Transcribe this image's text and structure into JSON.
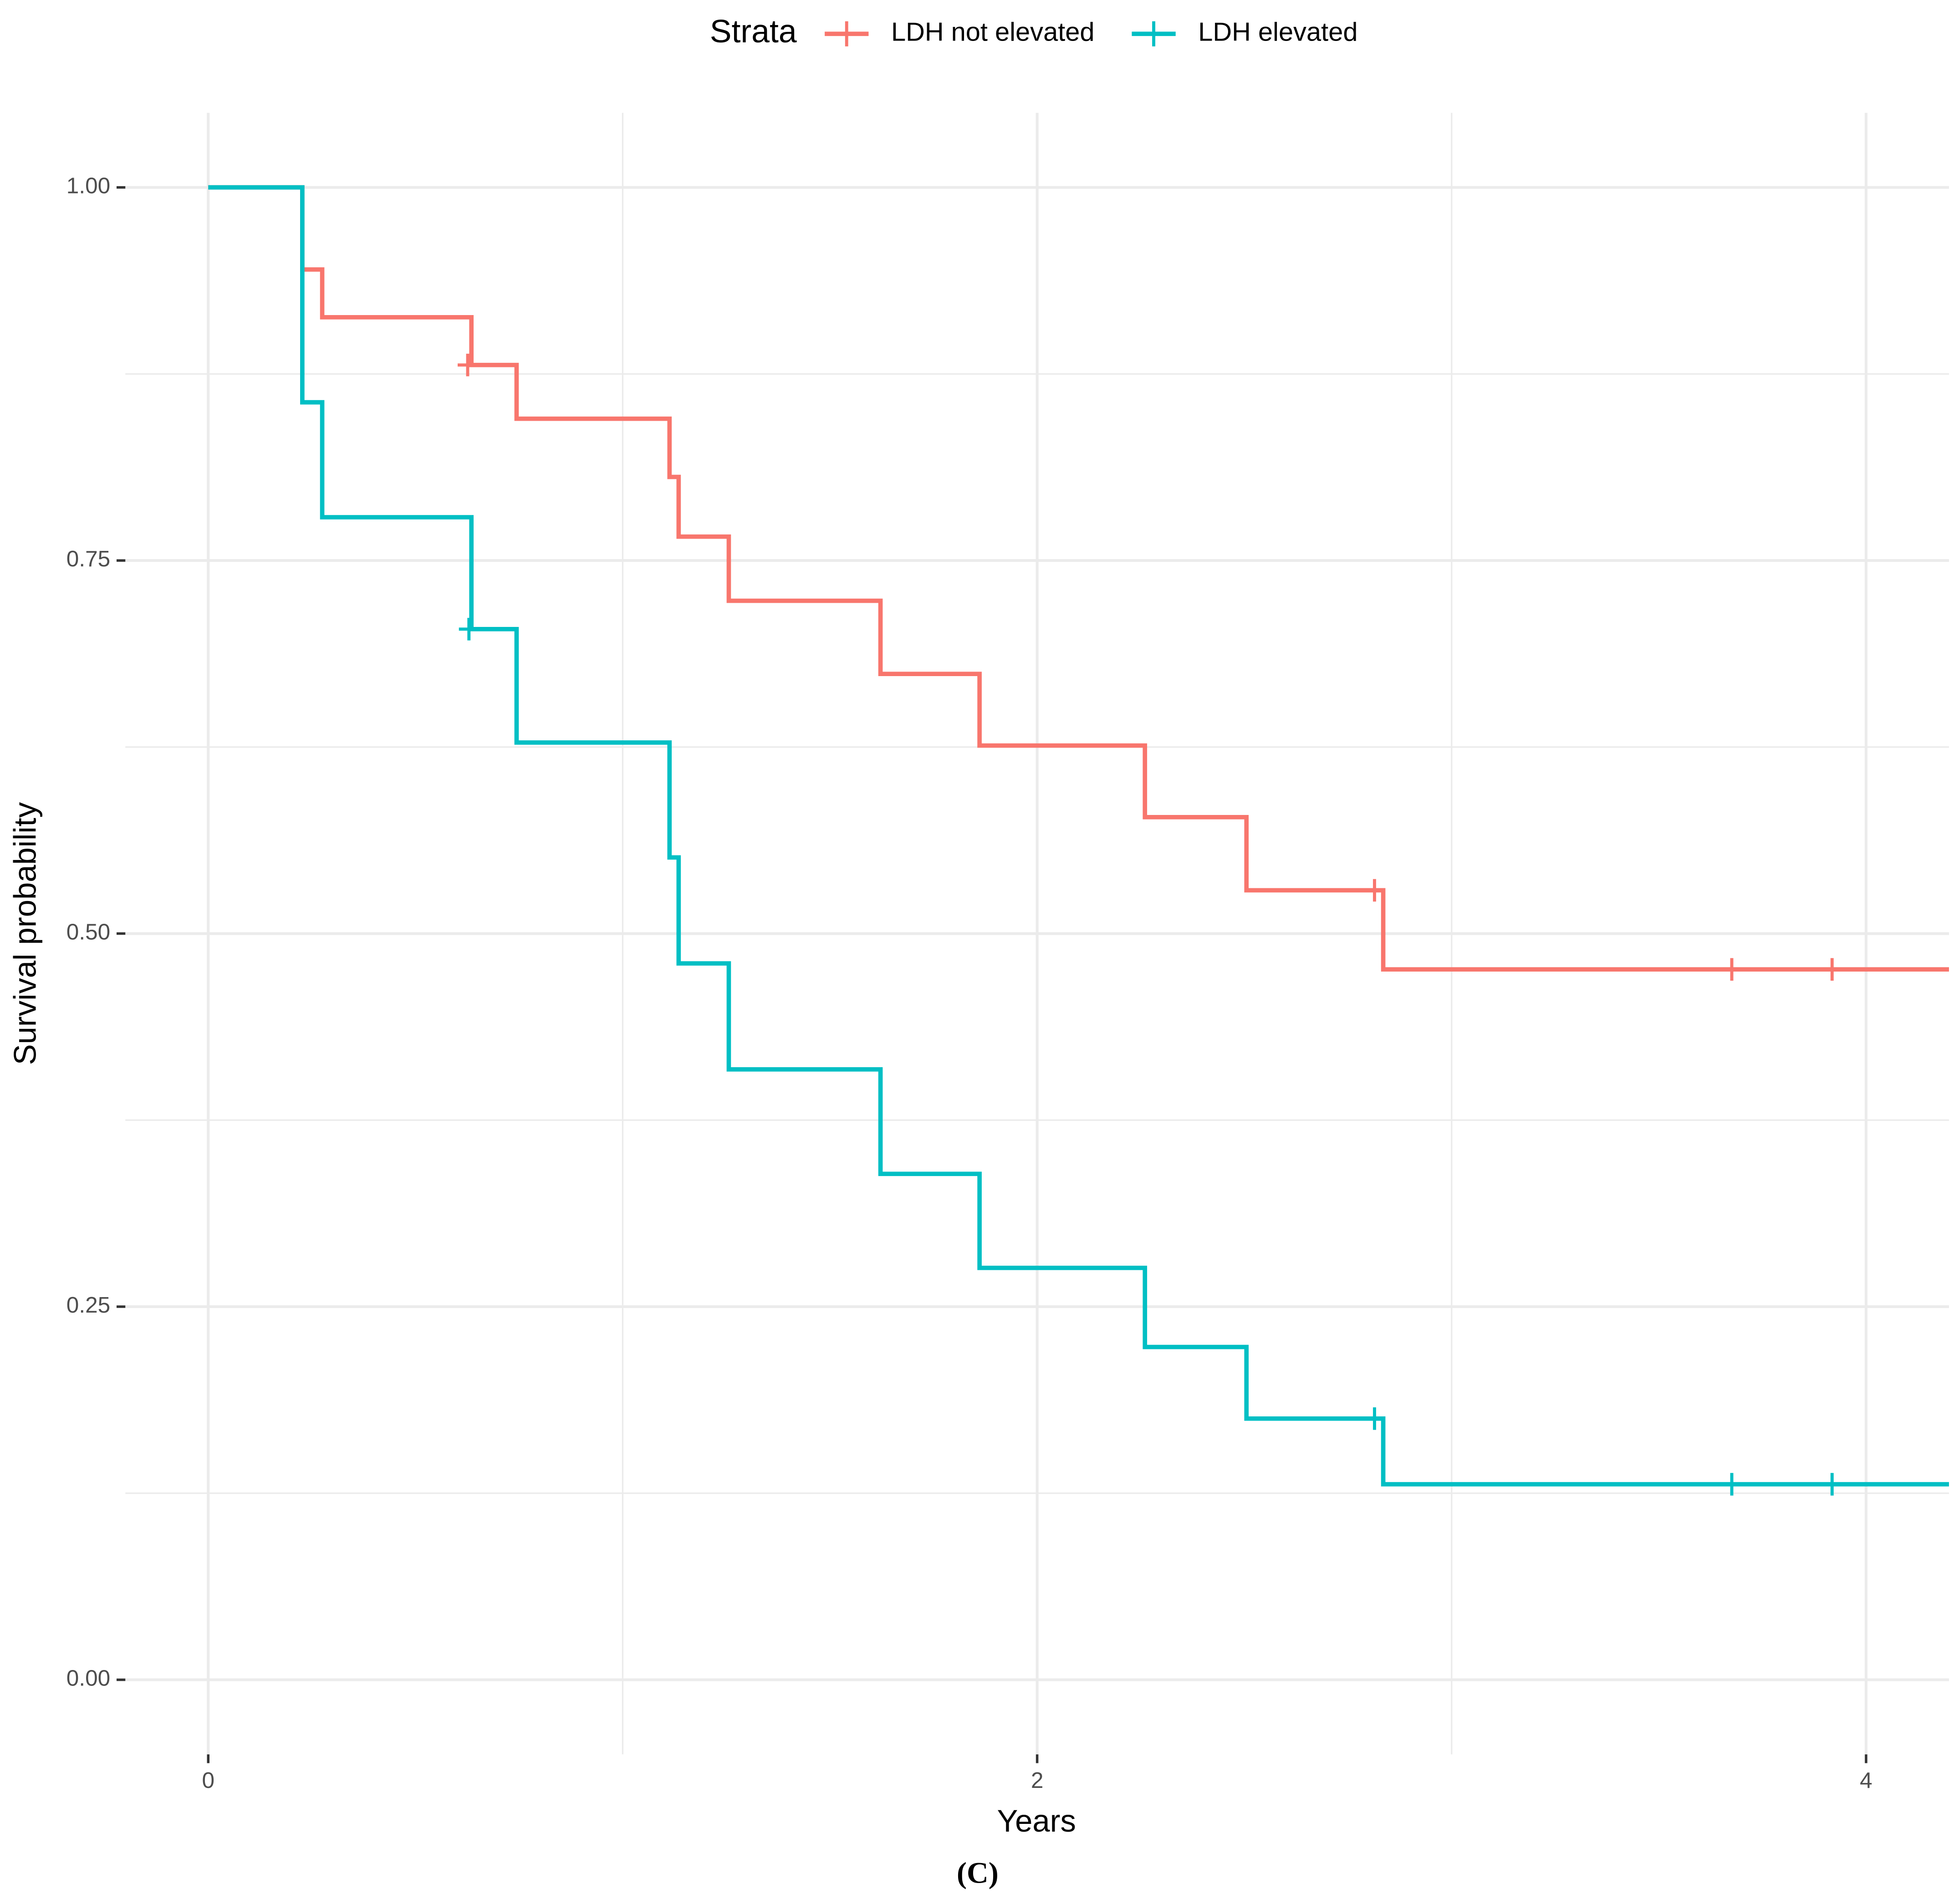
{
  "chart_data": {
    "type": "step",
    "caption": "(C)",
    "x_label": "Years",
    "y_label": "Survival probability",
    "legend_title": "Strata",
    "legend_position": "top",
    "grid": true,
    "xlim": [
      -0.2,
      4.2
    ],
    "ylim": [
      -0.05,
      1.05
    ],
    "xticks": [
      0,
      2,
      4
    ],
    "xminor_ticks": [
      1,
      3
    ],
    "yticks": [
      {
        "value": 0,
        "label": "0.00"
      },
      {
        "value": 0.25,
        "label": "0.25"
      },
      {
        "value": 0.5,
        "label": "0.50"
      },
      {
        "value": 0.75,
        "label": "0.75"
      },
      {
        "value": 1,
        "label": "1.00"
      }
    ],
    "yminor_ticks": [
      0.125,
      0.375,
      0.625,
      0.875
    ],
    "series": [
      {
        "name": "LDH not elevated",
        "color": "#f8766d",
        "x": [
          0,
          0.227,
          0.227,
          0.275,
          0.635,
          0.744,
          1.113,
          1.135,
          1.256,
          1.622,
          1.861,
          2.26,
          2.505,
          2.835
        ],
        "values": [
          1,
          0.971,
          0.945,
          0.913,
          0.881,
          0.845,
          0.806,
          0.766,
          0.723,
          0.674,
          0.626,
          0.578,
          0.529,
          0.476
        ],
        "censored": {
          "x": [
            0.626,
            2.814,
            3.676,
            3.918
          ],
          "values": [
            0.881,
            0.529,
            0.476,
            0.476
          ]
        }
      },
      {
        "name": "LDH elevated",
        "color": "#00bfc4",
        "x": [
          0,
          0.227,
          0.227,
          0.275,
          0.635,
          0.744,
          1.113,
          1.135,
          1.256,
          1.622,
          1.861,
          2.26,
          2.505,
          2.835
        ],
        "values": [
          1,
          0.929,
          0.856,
          0.779,
          0.704,
          0.628,
          0.551,
          0.48,
          0.409,
          0.339,
          0.276,
          0.223,
          0.175,
          0.131
        ],
        "censored": {
          "x": [
            0.629,
            2.814,
            3.676,
            3.918
          ],
          "values": [
            0.704,
            0.175,
            0.131,
            0.131
          ]
        }
      }
    ]
  }
}
